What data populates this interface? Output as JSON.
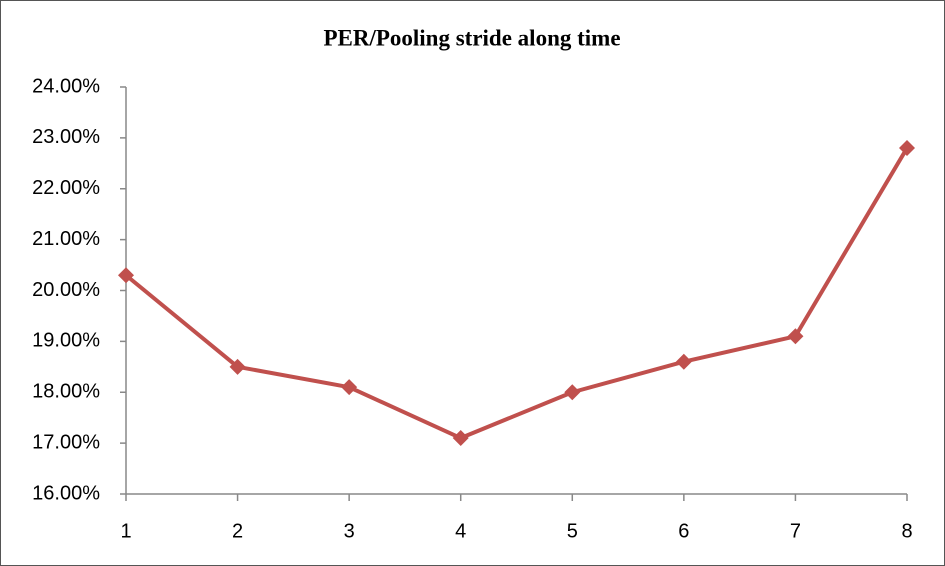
{
  "chart_data": {
    "type": "line",
    "title": "PER/Pooling stride along time",
    "x": [
      1,
      2,
      3,
      4,
      5,
      6,
      7,
      8
    ],
    "series": [
      {
        "name": "PER",
        "color": "#c0504d",
        "values": [
          20.3,
          18.5,
          18.1,
          17.1,
          18.0,
          18.6,
          19.1,
          22.8
        ]
      }
    ],
    "xlim": [
      1,
      8
    ],
    "xticks": [
      1,
      2,
      3,
      4,
      5,
      6,
      7,
      8
    ],
    "ylim": [
      16,
      24
    ],
    "yticks": [
      {
        "value": 16,
        "label": "16.00%"
      },
      {
        "value": 17,
        "label": "17.00%"
      },
      {
        "value": 18,
        "label": "18.00%"
      },
      {
        "value": 19,
        "label": "19.00%"
      },
      {
        "value": 20,
        "label": "20.00%"
      },
      {
        "value": 21,
        "label": "21.00%"
      },
      {
        "value": 22,
        "label": "22.00%"
      },
      {
        "value": 23,
        "label": "23.00%"
      },
      {
        "value": 24,
        "label": "24.00%"
      }
    ],
    "grid": false,
    "legend": false
  }
}
